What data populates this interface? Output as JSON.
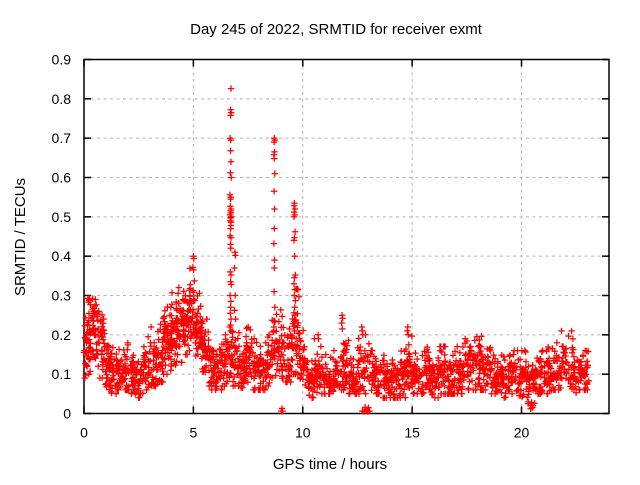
{
  "chart_data": {
    "type": "scatter",
    "title": "Day 245 of 2022, SRMTID for receiver exmt",
    "xlabel": "GPS time / hours",
    "ylabel": "SRMTID / TECUs",
    "xlim": [
      0,
      24
    ],
    "ylim": [
      0,
      0.9
    ],
    "xticks": [
      "0",
      "5",
      "10",
      "15",
      "20"
    ],
    "yticks": [
      "0",
      "0.1",
      "0.2",
      "0.3",
      "0.4",
      "0.5",
      "0.6",
      "0.7",
      "0.8",
      "0.9"
    ],
    "grid": true,
    "legend": "none",
    "marker": "plus",
    "colors": {
      "points": "#ff0000",
      "grid": "#b4b4b4",
      "axes": "#000000",
      "background": "#ffffff",
      "text": "#000000"
    },
    "bins_format": [
      "x_start",
      "x_end",
      "n_points",
      "y_center",
      "y_spread",
      "y_min",
      "y_max"
    ],
    "baseline_bins": [
      [
        0.0,
        0.15,
        20,
        0.16,
        0.05,
        0.09,
        0.27
      ],
      [
        0.15,
        0.4,
        34,
        0.2,
        0.055,
        0.1,
        0.3
      ],
      [
        0.4,
        0.7,
        40,
        0.21,
        0.05,
        0.12,
        0.3
      ],
      [
        0.7,
        0.95,
        30,
        0.17,
        0.045,
        0.09,
        0.26
      ],
      [
        0.95,
        1.2,
        30,
        0.12,
        0.035,
        0.06,
        0.19
      ],
      [
        1.2,
        1.5,
        30,
        0.1,
        0.03,
        0.05,
        0.17
      ],
      [
        1.5,
        1.8,
        30,
        0.105,
        0.03,
        0.06,
        0.17
      ],
      [
        1.8,
        2.1,
        30,
        0.12,
        0.035,
        0.06,
        0.2
      ],
      [
        2.1,
        2.4,
        30,
        0.1,
        0.03,
        0.05,
        0.17
      ],
      [
        2.4,
        2.7,
        30,
        0.09,
        0.03,
        0.04,
        0.16
      ],
      [
        2.7,
        3.0,
        30,
        0.115,
        0.035,
        0.06,
        0.21
      ],
      [
        3.0,
        3.3,
        30,
        0.13,
        0.04,
        0.07,
        0.22
      ],
      [
        3.3,
        3.6,
        33,
        0.15,
        0.045,
        0.08,
        0.26
      ],
      [
        3.6,
        3.9,
        36,
        0.18,
        0.05,
        0.1,
        0.29
      ],
      [
        3.9,
        4.2,
        39,
        0.2,
        0.05,
        0.11,
        0.31
      ],
      [
        4.2,
        4.5,
        39,
        0.22,
        0.05,
        0.13,
        0.32
      ],
      [
        4.5,
        4.8,
        42,
        0.24,
        0.05,
        0.15,
        0.34
      ],
      [
        4.8,
        5.1,
        42,
        0.26,
        0.055,
        0.16,
        0.38
      ],
      [
        5.1,
        5.4,
        39,
        0.23,
        0.05,
        0.14,
        0.33
      ],
      [
        5.4,
        5.7,
        33,
        0.16,
        0.04,
        0.09,
        0.24
      ],
      [
        5.7,
        6.0,
        30,
        0.12,
        0.035,
        0.06,
        0.19
      ],
      [
        6.0,
        6.3,
        30,
        0.11,
        0.03,
        0.06,
        0.18
      ],
      [
        6.3,
        6.6,
        30,
        0.13,
        0.035,
        0.07,
        0.2
      ],
      [
        6.6,
        6.8,
        20,
        0.15,
        0.04,
        0.08,
        0.22
      ],
      [
        6.8,
        7.1,
        30,
        0.13,
        0.04,
        0.07,
        0.24
      ],
      [
        7.1,
        7.4,
        30,
        0.1,
        0.03,
        0.05,
        0.17
      ],
      [
        7.4,
        7.7,
        33,
        0.14,
        0.04,
        0.07,
        0.22
      ],
      [
        7.7,
        8.0,
        30,
        0.12,
        0.035,
        0.06,
        0.19
      ],
      [
        8.0,
        8.3,
        30,
        0.11,
        0.035,
        0.06,
        0.18
      ],
      [
        8.3,
        8.6,
        30,
        0.13,
        0.04,
        0.07,
        0.2
      ],
      [
        8.6,
        8.9,
        27,
        0.16,
        0.045,
        0.09,
        0.26
      ],
      [
        8.9,
        9.2,
        30,
        0.16,
        0.045,
        0.09,
        0.27
      ],
      [
        9.2,
        9.5,
        30,
        0.15,
        0.045,
        0.08,
        0.25
      ],
      [
        9.5,
        9.85,
        39,
        0.19,
        0.055,
        0.1,
        0.33
      ],
      [
        9.85,
        10.1,
        27,
        0.13,
        0.04,
        0.07,
        0.22
      ],
      [
        10.1,
        10.5,
        36,
        0.09,
        0.03,
        0.04,
        0.15
      ],
      [
        10.5,
        10.9,
        36,
        0.11,
        0.035,
        0.05,
        0.2
      ],
      [
        10.9,
        11.3,
        36,
        0.09,
        0.03,
        0.05,
        0.15
      ],
      [
        11.3,
        11.6,
        27,
        0.1,
        0.03,
        0.05,
        0.16
      ],
      [
        11.6,
        12.1,
        42,
        0.12,
        0.04,
        0.06,
        0.23
      ],
      [
        12.1,
        12.5,
        36,
        0.09,
        0.03,
        0.05,
        0.15
      ],
      [
        12.5,
        13.1,
        48,
        0.11,
        0.04,
        0.05,
        0.2
      ],
      [
        13.1,
        13.5,
        36,
        0.095,
        0.03,
        0.05,
        0.16
      ],
      [
        13.5,
        13.9,
        36,
        0.09,
        0.03,
        0.04,
        0.17
      ],
      [
        13.9,
        14.3,
        36,
        0.08,
        0.03,
        0.04,
        0.14
      ],
      [
        14.3,
        14.7,
        36,
        0.09,
        0.03,
        0.04,
        0.16
      ],
      [
        14.7,
        15.0,
        30,
        0.12,
        0.04,
        0.06,
        0.22
      ],
      [
        15.0,
        15.4,
        36,
        0.1,
        0.03,
        0.05,
        0.17
      ],
      [
        15.4,
        15.8,
        36,
        0.1,
        0.035,
        0.05,
        0.18
      ],
      [
        15.8,
        16.2,
        36,
        0.09,
        0.03,
        0.04,
        0.16
      ],
      [
        16.2,
        16.6,
        36,
        0.1,
        0.035,
        0.05,
        0.17
      ],
      [
        16.6,
        17.0,
        36,
        0.09,
        0.03,
        0.05,
        0.16
      ],
      [
        17.0,
        17.4,
        36,
        0.1,
        0.035,
        0.05,
        0.17
      ],
      [
        17.4,
        17.8,
        39,
        0.12,
        0.04,
        0.06,
        0.19
      ],
      [
        17.8,
        18.2,
        39,
        0.13,
        0.04,
        0.06,
        0.2
      ],
      [
        18.2,
        18.6,
        36,
        0.11,
        0.035,
        0.06,
        0.18
      ],
      [
        18.6,
        19.0,
        36,
        0.09,
        0.03,
        0.05,
        0.15
      ],
      [
        19.0,
        19.4,
        36,
        0.09,
        0.03,
        0.04,
        0.15
      ],
      [
        19.4,
        19.8,
        36,
        0.1,
        0.03,
        0.05,
        0.16
      ],
      [
        19.8,
        20.2,
        36,
        0.09,
        0.035,
        0.03,
        0.16
      ],
      [
        20.2,
        20.6,
        36,
        0.09,
        0.035,
        0.02,
        0.16
      ],
      [
        20.6,
        21.0,
        36,
        0.1,
        0.03,
        0.05,
        0.16
      ],
      [
        21.0,
        21.4,
        36,
        0.1,
        0.03,
        0.05,
        0.17
      ],
      [
        21.4,
        21.8,
        36,
        0.11,
        0.035,
        0.06,
        0.18
      ],
      [
        21.8,
        22.4,
        45,
        0.13,
        0.04,
        0.06,
        0.21
      ],
      [
        22.4,
        22.8,
        36,
        0.1,
        0.03,
        0.05,
        0.16
      ],
      [
        22.8,
        23.1,
        27,
        0.1,
        0.03,
        0.06,
        0.16
      ]
    ],
    "spike_points": [
      [
        6.72,
        0.826
      ],
      [
        6.7,
        0.772
      ],
      [
        6.73,
        0.765
      ],
      [
        6.7,
        0.758
      ],
      [
        6.68,
        0.7
      ],
      [
        6.71,
        0.695
      ],
      [
        6.7,
        0.668
      ],
      [
        6.72,
        0.64
      ],
      [
        6.69,
        0.612
      ],
      [
        6.73,
        0.6
      ],
      [
        6.67,
        0.556
      ],
      [
        6.71,
        0.55
      ],
      [
        6.7,
        0.545
      ],
      [
        6.69,
        0.527
      ],
      [
        6.72,
        0.52
      ],
      [
        6.7,
        0.515
      ],
      [
        6.71,
        0.51
      ],
      [
        6.68,
        0.505
      ],
      [
        6.73,
        0.5
      ],
      [
        6.7,
        0.497
      ],
      [
        6.69,
        0.49
      ],
      [
        6.72,
        0.486
      ],
      [
        6.71,
        0.478
      ],
      [
        6.7,
        0.47
      ],
      [
        6.68,
        0.452
      ],
      [
        6.72,
        0.447
      ],
      [
        6.7,
        0.43
      ],
      [
        6.71,
        0.42
      ],
      [
        6.69,
        0.36
      ],
      [
        6.72,
        0.352
      ],
      [
        6.7,
        0.335
      ],
      [
        6.73,
        0.328
      ],
      [
        6.68,
        0.3
      ],
      [
        6.71,
        0.285
      ],
      [
        6.7,
        0.27
      ],
      [
        6.69,
        0.255
      ],
      [
        6.72,
        0.24
      ],
      [
        6.7,
        0.225
      ],
      [
        6.71,
        0.21
      ],
      [
        6.9,
        0.41
      ],
      [
        6.92,
        0.402
      ],
      [
        6.88,
        0.37
      ],
      [
        6.91,
        0.3
      ],
      [
        6.89,
        0.262
      ],
      [
        6.93,
        0.24
      ],
      [
        8.7,
        0.7
      ],
      [
        8.72,
        0.695
      ],
      [
        8.69,
        0.69
      ],
      [
        8.71,
        0.665
      ],
      [
        8.68,
        0.658
      ],
      [
        8.7,
        0.648
      ],
      [
        8.72,
        0.61
      ],
      [
        8.69,
        0.565
      ],
      [
        8.71,
        0.52
      ],
      [
        8.7,
        0.47
      ],
      [
        8.68,
        0.432
      ],
      [
        8.71,
        0.39
      ],
      [
        8.7,
        0.37
      ],
      [
        8.69,
        0.31
      ],
      [
        8.72,
        0.27
      ],
      [
        8.7,
        0.235
      ],
      [
        8.68,
        0.22
      ],
      [
        9.62,
        0.535
      ],
      [
        9.6,
        0.528
      ],
      [
        9.64,
        0.52
      ],
      [
        9.61,
        0.512
      ],
      [
        9.63,
        0.505
      ],
      [
        9.6,
        0.5
      ],
      [
        9.65,
        0.462
      ],
      [
        9.62,
        0.447
      ],
      [
        9.6,
        0.44
      ],
      [
        9.63,
        0.4
      ],
      [
        9.66,
        0.352
      ],
      [
        9.62,
        0.345
      ],
      [
        9.6,
        0.33
      ],
      [
        9.64,
        0.315
      ],
      [
        9.61,
        0.3
      ],
      [
        9.67,
        0.287
      ],
      [
        9.63,
        0.27
      ],
      [
        9.6,
        0.256
      ],
      [
        9.65,
        0.235
      ],
      [
        9.62,
        0.21
      ],
      [
        9.7,
        0.19
      ],
      [
        5.0,
        0.4
      ],
      [
        5.02,
        0.394
      ],
      [
        4.98,
        0.372
      ],
      [
        5.01,
        0.365
      ],
      [
        11.8,
        0.25
      ],
      [
        11.82,
        0.242
      ],
      [
        11.78,
        0.23
      ],
      [
        11.81,
        0.215
      ],
      [
        12.7,
        0.22
      ],
      [
        12.72,
        0.21
      ],
      [
        14.8,
        0.22
      ],
      [
        14.78,
        0.21
      ],
      [
        14.82,
        0.2
      ],
      [
        10.7,
        0.2
      ],
      [
        10.72,
        0.19
      ]
    ],
    "near_zero_points": [
      [
        9.02,
        0.006
      ],
      [
        9.08,
        0.006
      ],
      [
        9.05,
        0.013
      ],
      [
        12.72,
        0.006
      ],
      [
        12.8,
        0.005
      ],
      [
        12.85,
        0.016
      ],
      [
        12.9,
        0.007
      ],
      [
        12.97,
        0.005
      ],
      [
        13.0,
        0.015
      ],
      [
        13.05,
        0.006
      ],
      [
        20.3,
        0.025
      ],
      [
        20.42,
        0.012
      ],
      [
        20.46,
        0.028
      ],
      [
        20.5,
        0.015
      ]
    ]
  }
}
